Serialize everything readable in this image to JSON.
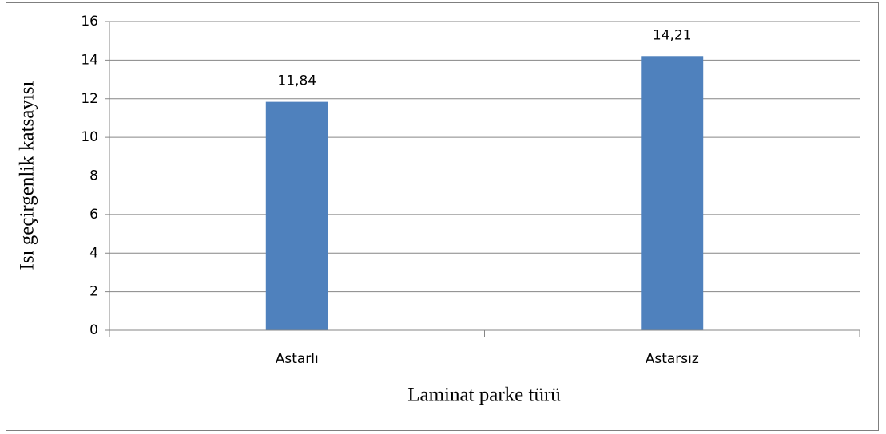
{
  "chart_data": {
    "type": "bar",
    "categories": [
      "Astarlı",
      "Astarsız"
    ],
    "values": [
      11.84,
      14.21
    ],
    "value_labels": [
      "11,84",
      "14,21"
    ],
    "color": "#4f81bd",
    "xlabel": "Laminat parke türü",
    "ylabel": "Isı geçirgenlik katsayısı",
    "ylim": [
      0,
      16
    ],
    "yticks": [
      0,
      2,
      4,
      6,
      8,
      10,
      12,
      14,
      16
    ],
    "grid": true
  }
}
